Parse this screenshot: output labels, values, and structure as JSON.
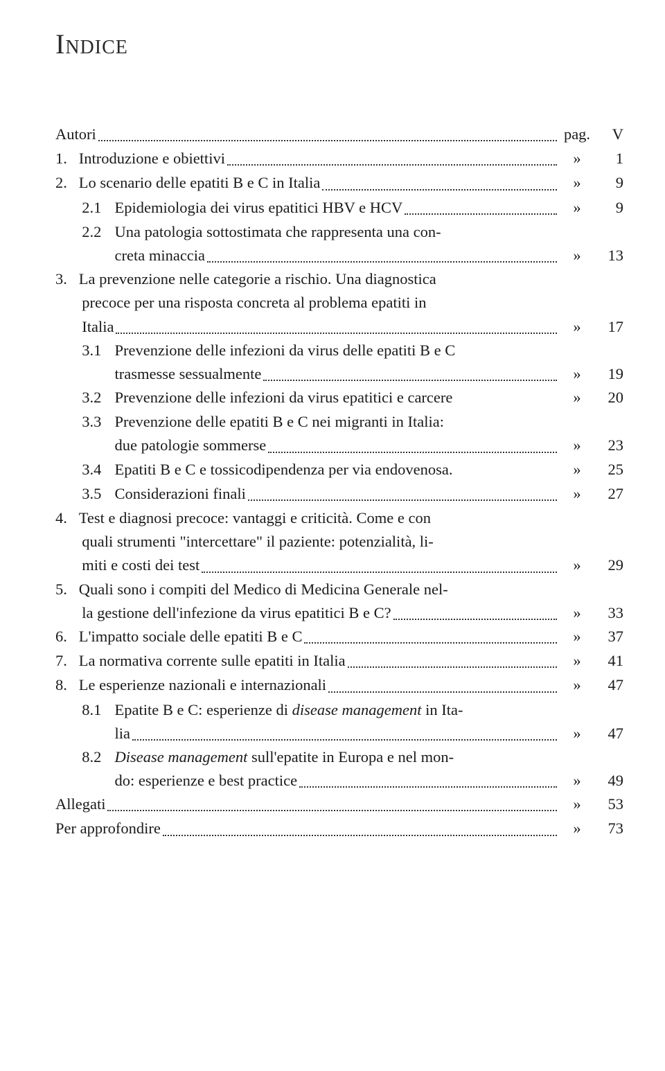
{
  "title": "Indice",
  "page_label": "pag.",
  "ditto": "»",
  "entries": [
    {
      "type": "single",
      "num": "",
      "text": "Autori",
      "marker": "pag.",
      "page": "V"
    },
    {
      "type": "single",
      "num": "1.",
      "text": "Introduzione e obiettivi",
      "marker": "»",
      "page": "1"
    },
    {
      "type": "single",
      "num": "2.",
      "text": "Lo scenario delle epatiti B e C in Italia",
      "marker": "»",
      "page": "9"
    },
    {
      "type": "single",
      "level": "sub",
      "num": "2.1",
      "text": "Epidemiologia dei virus epatitici HBV e HCV",
      "marker": "»",
      "page": "9"
    },
    {
      "type": "multi",
      "level": "sub",
      "num": "2.2",
      "first": "Una patologia sottostimata che rappresenta una con-",
      "cont": [],
      "last": "creta minaccia",
      "marker": "»",
      "page": "13"
    },
    {
      "type": "multi",
      "num": "3.",
      "first": "La prevenzione nelle categorie a rischio. Una diagnostica",
      "cont": [
        "precoce per una risposta concreta al problema epatiti in"
      ],
      "last": "Italia",
      "marker": "»",
      "page": "17"
    },
    {
      "type": "multi",
      "level": "sub",
      "num": "3.1",
      "first": "Prevenzione delle infezioni da virus delle epatiti B e C",
      "cont": [],
      "last": "trasmesse sessualmente",
      "marker": "»",
      "page": "19"
    },
    {
      "type": "single",
      "level": "sub",
      "num": "3.2",
      "text": "Prevenzione delle infezioni da virus epatitici e carcere",
      "marker": "»",
      "page": "20",
      "noleader": true
    },
    {
      "type": "multi",
      "level": "sub",
      "num": "3.3",
      "first": "Prevenzione delle epatiti B e C nei migranti in Italia:",
      "cont": [],
      "last": "due patologie sommerse",
      "marker": "»",
      "page": "23"
    },
    {
      "type": "single",
      "level": "sub",
      "num": "3.4",
      "text": "Epatiti B e C e tossicodipendenza per via endovenosa.",
      "marker": "»",
      "page": "25",
      "noleader": true
    },
    {
      "type": "single",
      "level": "sub",
      "num": "3.5",
      "text": "Considerazioni finali",
      "marker": "»",
      "page": "27"
    },
    {
      "type": "multi",
      "num": "4.",
      "first": "Test e diagnosi precoce: vantaggi e criticità. Come e con",
      "cont": [
        "quali strumenti \"intercettare\" il paziente: potenzialità, li-"
      ],
      "last": "miti e costi dei test",
      "marker": "»",
      "page": "29"
    },
    {
      "type": "multi",
      "num": "5.",
      "first": "Quali sono i compiti del Medico di Medicina Generale nel-",
      "cont": [],
      "last": "la gestione dell'infezione da virus epatitici B e C?",
      "marker": "»",
      "page": "33"
    },
    {
      "type": "single",
      "num": "6.",
      "text": "L'impatto sociale delle epatiti B e C",
      "marker": "»",
      "page": "37"
    },
    {
      "type": "single",
      "num": "7.",
      "text": "La normativa corrente sulle epatiti in Italia",
      "marker": "»",
      "page": "41"
    },
    {
      "type": "single",
      "num": "8.",
      "text": "Le esperienze nazionali e internazionali",
      "marker": "»",
      "page": "47"
    },
    {
      "type": "multi",
      "level": "sub",
      "num": "8.1",
      "first_html": "Epatite B e C: esperienze di <span class=\"italic\">disease management</span> in Ita-",
      "cont": [],
      "last": "lia",
      "marker": "»",
      "page": "47"
    },
    {
      "type": "multi",
      "level": "sub",
      "num": "8.2",
      "first_html": "<span class=\"italic\">Disease management</span> sull'epatite in Europa e nel mon-",
      "cont": [],
      "last": "do: esperienze e best practice",
      "marker": "»",
      "page": "49"
    },
    {
      "type": "single",
      "num": "",
      "text": "Allegati",
      "marker": "»",
      "page": "53"
    },
    {
      "type": "single",
      "num": "",
      "text": "Per approfondire",
      "marker": "»",
      "page": "73"
    }
  ]
}
